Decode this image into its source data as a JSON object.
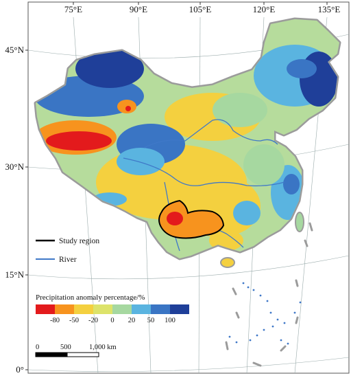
{
  "longitude_labels": [
    "75°E",
    "90°E",
    "105°E",
    "120°E",
    "135°E"
  ],
  "latitude_labels": [
    "45°N",
    "30°N",
    "15°N",
    "0°"
  ],
  "legend": {
    "study_region_label": "Study region",
    "river_label": "River",
    "colorbar_title": "Precipitation anomaly percentage/%",
    "colorbar_values": [
      "-80",
      "-50",
      "-20",
      "0",
      "20",
      "50",
      "100"
    ],
    "colorbar_colors": [
      "#e31a1c",
      "#f7931e",
      "#f4d03f",
      "#dde36a",
      "#a6d8a0",
      "#5ab4e0",
      "#3a75c4",
      "#1f3f99"
    ]
  },
  "scale_bar": {
    "labels": [
      "0",
      "500",
      "1,000 km"
    ]
  }
}
